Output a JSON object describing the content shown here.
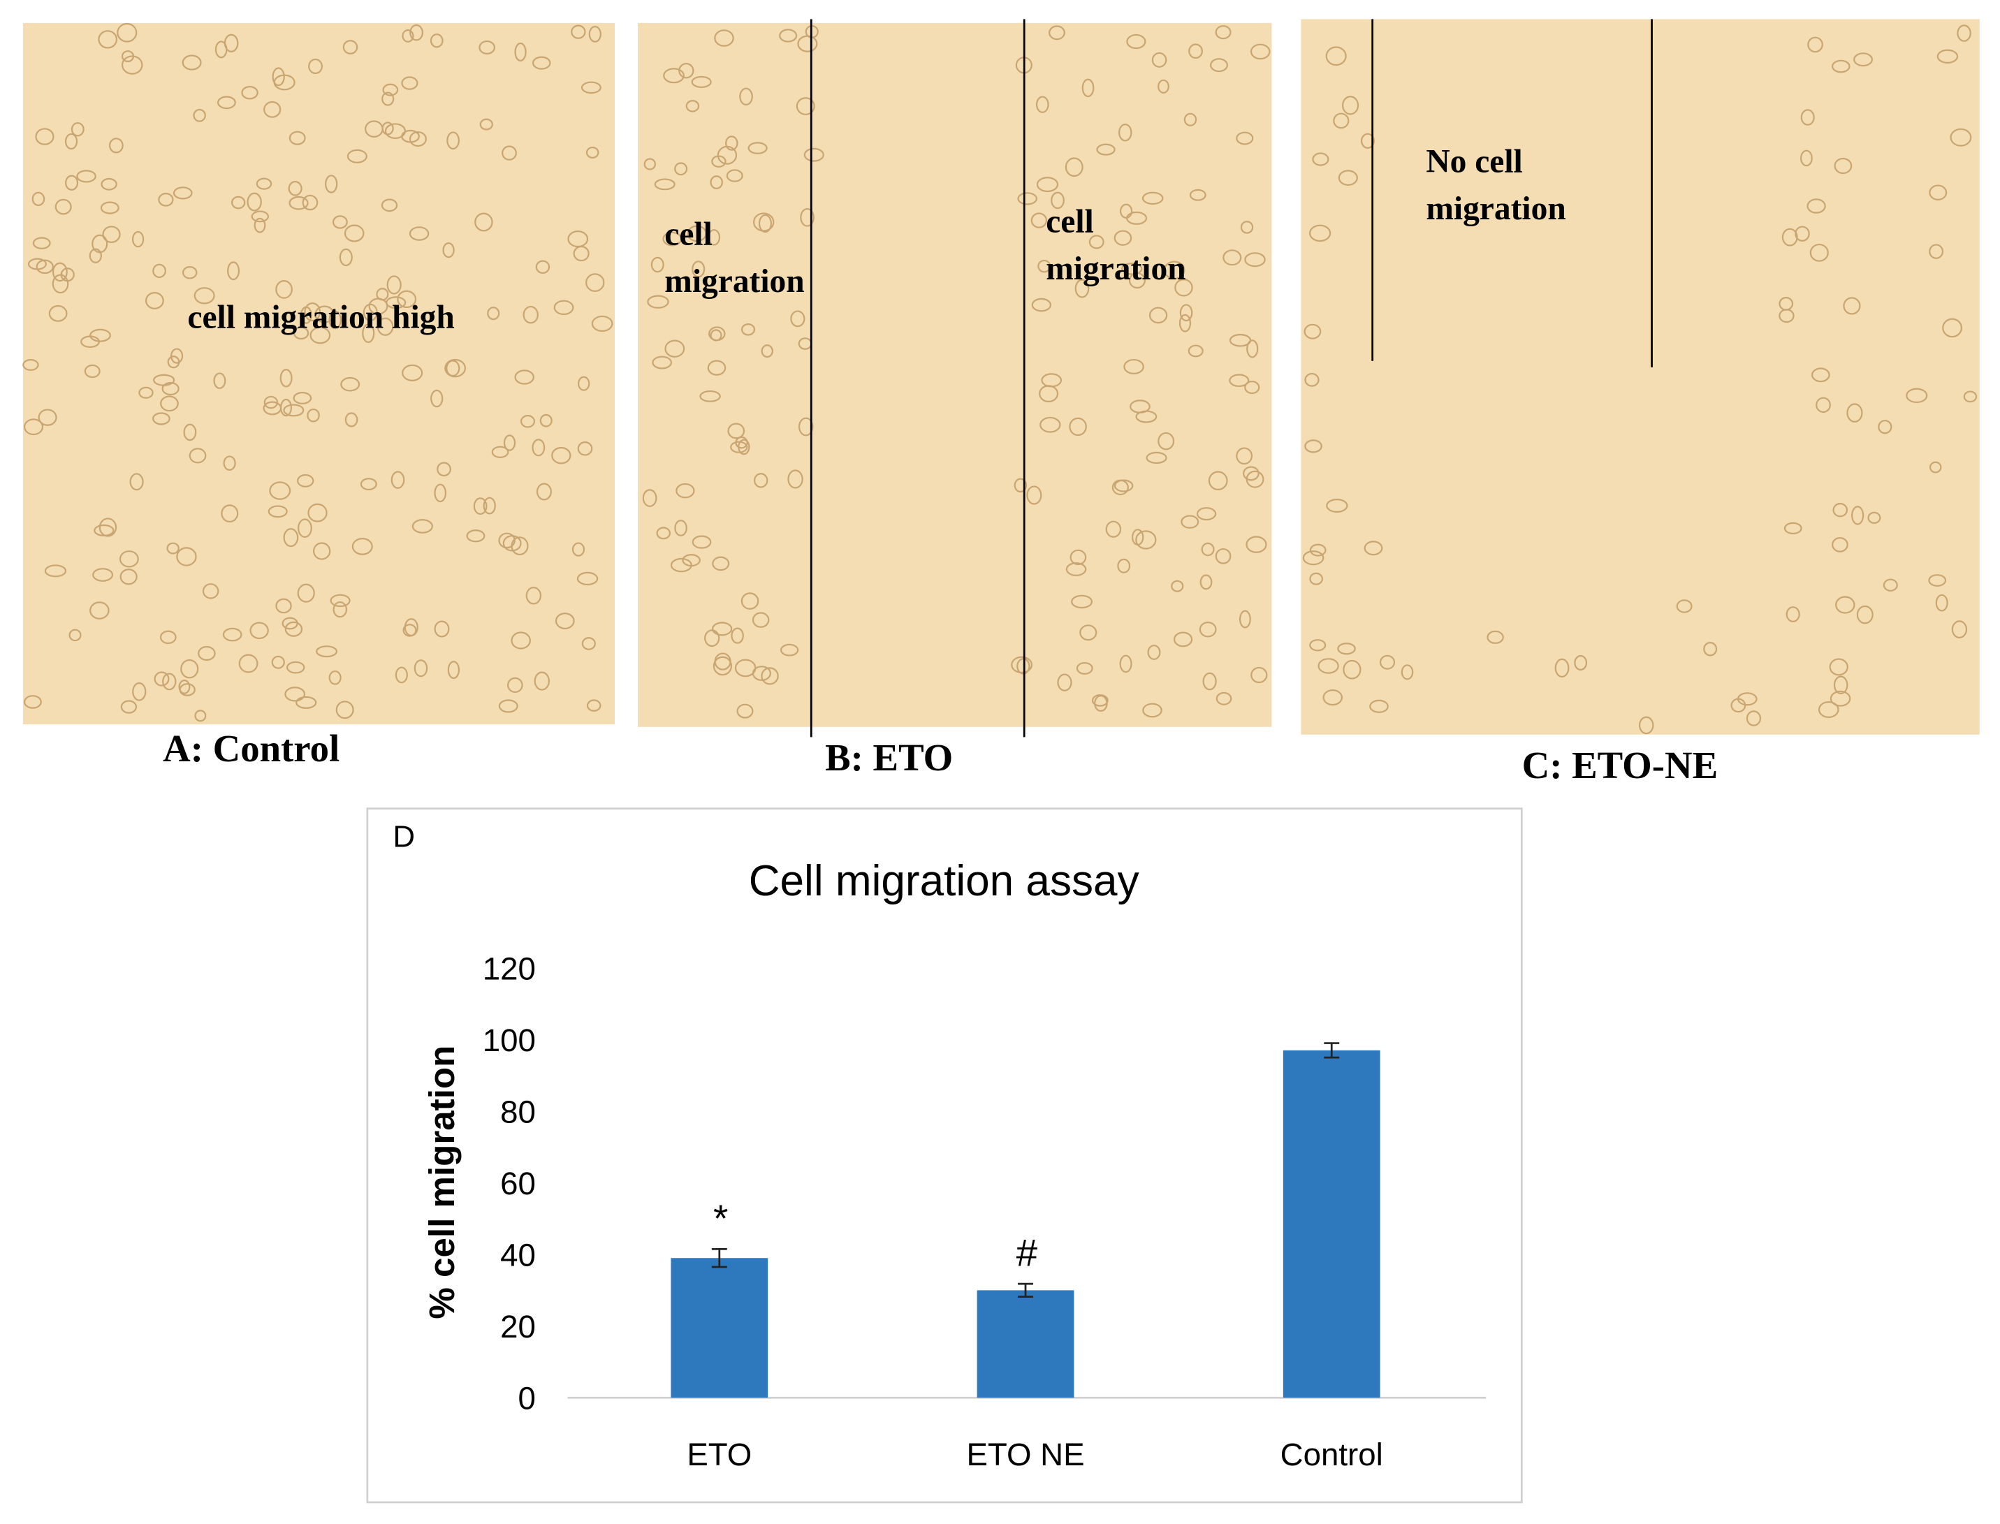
{
  "panels": [
    {
      "label": "A: Control",
      "annotations": [
        [
          "cell migration high"
        ]
      ]
    },
    {
      "label": "B: ETO",
      "annotations": [
        [
          "cell",
          "migration"
        ],
        [
          "cell",
          "migration"
        ]
      ]
    },
    {
      "label": "C: ETO-NE",
      "annotations": [
        [
          "No cell",
          "migration"
        ]
      ]
    }
  ],
  "chart_data": {
    "type": "bar",
    "panel_label": "D",
    "title": "Cell migration assay",
    "y_label": "% cell migration",
    "categories": [
      "ETO",
      "ETO NE",
      "Control"
    ],
    "values": [
      39,
      30,
      97
    ],
    "errors": [
      2.5,
      1.8,
      2
    ],
    "markers": [
      "*",
      "#",
      null
    ],
    "color": "#2e78be",
    "ylim": [
      0,
      120
    ],
    "yticks": [
      0,
      20,
      40,
      60,
      80,
      100,
      120
    ],
    "grid": false
  }
}
